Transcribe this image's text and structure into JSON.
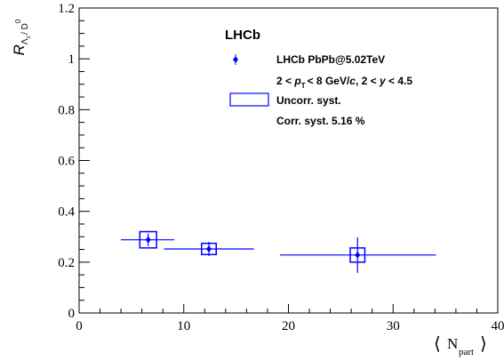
{
  "chart_data": {
    "type": "scatter",
    "collaboration": "LHCb",
    "legend": {
      "series_label": "LHCb PbPb@5.02TeV",
      "kinematics": {
        "pt_lo": "2 <",
        "pt_sym": "p",
        "pt_sub": "T",
        "pt_mid": "< 8 GeV/",
        "pt_unit": "c",
        "y_lo": ", 2 <",
        "y_sym": "y",
        "y_hi": "< 4.5"
      },
      "uncorr_label": "Uncorr. syst.",
      "corr_label": "Corr. syst. 5.16 %"
    },
    "xlabel": {
      "main": "N",
      "sub": "part",
      "open": "⟨",
      "close": "⟩"
    },
    "ylabel": {
      "main": "R",
      "sub1": "Λ",
      "subsub": "c",
      "sep": "/ D",
      "sup": "0"
    },
    "xlim": [
      0,
      40
    ],
    "ylim": [
      0,
      1.2
    ],
    "x_ticks": [
      0,
      10,
      20,
      30,
      40
    ],
    "y_ticks": [
      0,
      0.2,
      0.4,
      0.6,
      0.8,
      1,
      1.2
    ],
    "x_tick_labels": [
      "0",
      "10",
      "20",
      "30",
      "40"
    ],
    "y_tick_labels": [
      "0",
      "0.2",
      "0.4",
      "0.6",
      "0.8",
      "1",
      "1.2"
    ],
    "color": "#0000ff",
    "points": [
      {
        "x": 6.6,
        "y": 0.288,
        "x_lo": 4.0,
        "x_hi": 9.1,
        "stat": 0.025,
        "syst_dx": 0.8,
        "syst_dy": 0.032
      },
      {
        "x": 12.4,
        "y": 0.252,
        "x_lo": 8.1,
        "x_hi": 16.7,
        "stat": 0.028,
        "syst_dx": 0.7,
        "syst_dy": 0.022
      },
      {
        "x": 26.6,
        "y": 0.228,
        "x_lo": 19.2,
        "x_hi": 34.1,
        "stat": 0.07,
        "syst_dx": 0.7,
        "syst_dy": 0.028
      }
    ]
  }
}
